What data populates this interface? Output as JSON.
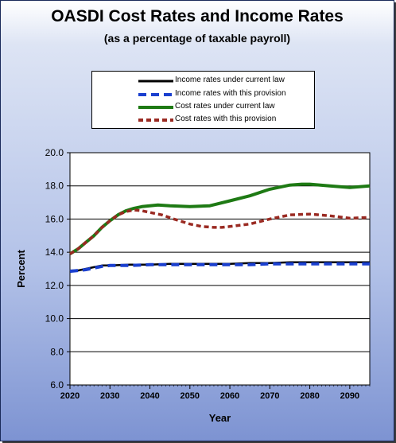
{
  "chart_data": {
    "type": "line",
    "title": "OASDI Cost Rates and Income Rates",
    "subtitle": "(as a percentage of taxable payroll)",
    "xlabel": "Year",
    "ylabel": "Percent",
    "xlim": [
      2020,
      2095
    ],
    "ylim": [
      6.0,
      20.0
    ],
    "xticks": [
      "2020",
      "2030",
      "2040",
      "2050",
      "2060",
      "2070",
      "2080",
      "2090"
    ],
    "yticks": [
      "6.0",
      "8.0",
      "10.0",
      "12.0",
      "14.0",
      "16.0",
      "18.0",
      "20.0"
    ],
    "grid": "horizontal",
    "legend_position": "top-center",
    "series": [
      {
        "name": "Income rates under current law",
        "color": "#000000",
        "style": "solid",
        "x": [
          2020,
          2022,
          2024,
          2026,
          2028,
          2030,
          2035,
          2040,
          2045,
          2050,
          2055,
          2060,
          2065,
          2070,
          2075,
          2080,
          2085,
          2090,
          2095
        ],
        "y": [
          12.9,
          12.9,
          13.0,
          13.1,
          13.2,
          13.2,
          13.25,
          13.25,
          13.3,
          13.3,
          13.3,
          13.3,
          13.35,
          13.35,
          13.4,
          13.4,
          13.4,
          13.4,
          13.4
        ]
      },
      {
        "name": "Income rates with this provision",
        "color": "#1a3fcf",
        "style": "dashed",
        "x": [
          2020,
          2022,
          2024,
          2026,
          2028,
          2030,
          2035,
          2040,
          2045,
          2050,
          2055,
          2060,
          2065,
          2070,
          2075,
          2080,
          2085,
          2090,
          2095
        ],
        "y": [
          12.85,
          12.9,
          12.95,
          13.05,
          13.15,
          13.2,
          13.2,
          13.25,
          13.25,
          13.25,
          13.25,
          13.25,
          13.25,
          13.3,
          13.3,
          13.3,
          13.3,
          13.3,
          13.3
        ]
      },
      {
        "name": "Cost rates under current law",
        "color": "#1e7a14",
        "style": "solid",
        "x": [
          2020,
          2022,
          2024,
          2026,
          2028,
          2030,
          2032,
          2034,
          2036,
          2038,
          2040,
          2042,
          2045,
          2050,
          2055,
          2060,
          2065,
          2070,
          2075,
          2078,
          2080,
          2085,
          2090,
          2095
        ],
        "y": [
          13.9,
          14.2,
          14.6,
          15.0,
          15.5,
          15.9,
          16.25,
          16.5,
          16.65,
          16.75,
          16.8,
          16.85,
          16.8,
          16.75,
          16.8,
          17.1,
          17.4,
          17.8,
          18.05,
          18.1,
          18.1,
          18.0,
          17.9,
          18.0
        ]
      },
      {
        "name": "Cost rates with this provision",
        "color": "#9a2a22",
        "style": "dashed",
        "x": [
          2020,
          2022,
          2024,
          2026,
          2028,
          2030,
          2032,
          2034,
          2036,
          2038,
          2040,
          2043,
          2046,
          2050,
          2053,
          2056,
          2058,
          2060,
          2065,
          2070,
          2075,
          2080,
          2085,
          2090,
          2095
        ],
        "y": [
          13.9,
          14.2,
          14.6,
          15.0,
          15.5,
          15.9,
          16.25,
          16.45,
          16.55,
          16.5,
          16.4,
          16.25,
          16.0,
          15.7,
          15.55,
          15.5,
          15.5,
          15.55,
          15.7,
          16.0,
          16.25,
          16.3,
          16.2,
          16.05,
          16.1
        ]
      }
    ]
  }
}
